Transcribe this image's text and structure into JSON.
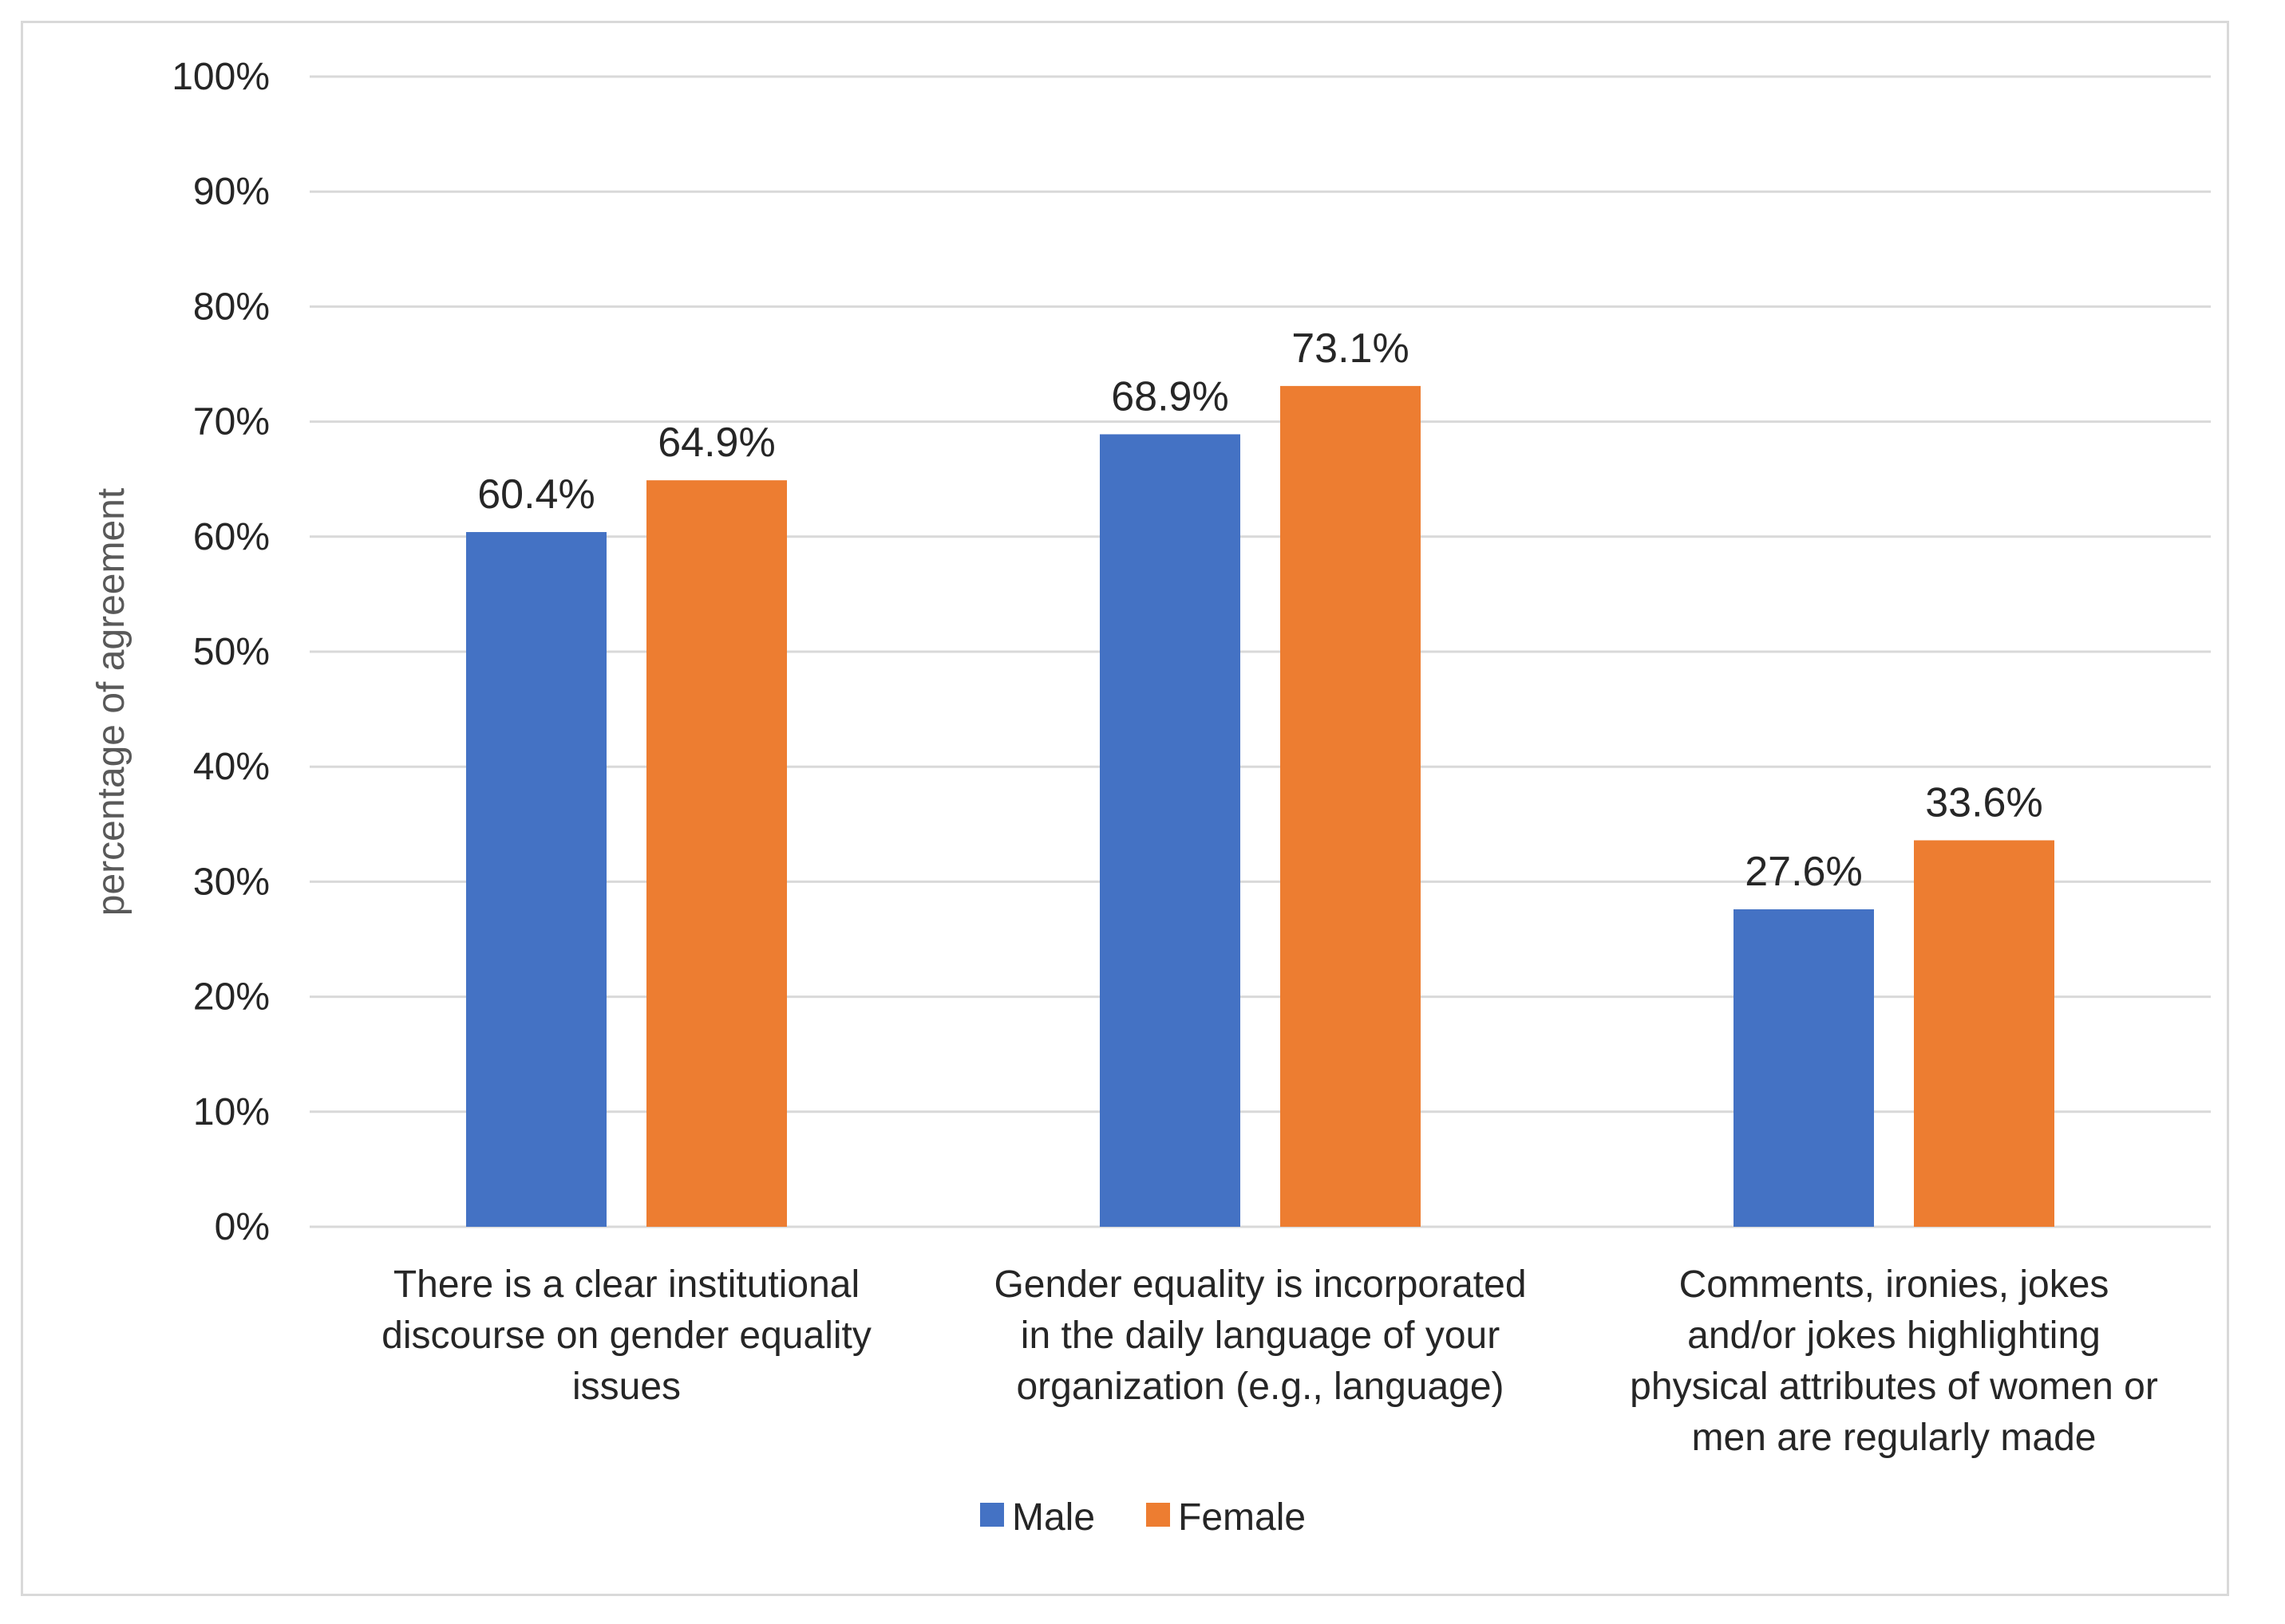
{
  "chart_data": {
    "type": "bar",
    "title": "",
    "xlabel": "",
    "ylabel": "percentage of agreement",
    "ylim": [
      0,
      100
    ],
    "yticks": [
      0,
      10,
      20,
      30,
      40,
      50,
      60,
      70,
      80,
      90,
      100
    ],
    "ytick_labels": [
      "0%",
      "10%",
      "20%",
      "30%",
      "40%",
      "50%",
      "60%",
      "70%",
      "80%",
      "90%",
      "100%"
    ],
    "grid": true,
    "legend_position": "bottom",
    "categories": [
      [
        "There is a clear institutional",
        "discourse on gender equality",
        "issues"
      ],
      [
        "Gender equality is incorporated",
        "in the daily language of your",
        "organization (e.g., language)"
      ],
      [
        "Comments, ironies, jokes",
        "and/or jokes highlighting",
        "physical attributes of women or",
        "men are regularly made"
      ]
    ],
    "series": [
      {
        "name": "Male",
        "color": "#4472c4",
        "values": [
          60.4,
          68.9,
          27.6
        ],
        "labels": [
          "60.4%",
          "68.9%",
          "27.6%"
        ]
      },
      {
        "name": "Female",
        "color": "#ed7d31",
        "values": [
          64.9,
          73.1,
          33.6
        ],
        "labels": [
          "64.9%",
          "73.1%",
          "33.6%"
        ]
      }
    ]
  }
}
